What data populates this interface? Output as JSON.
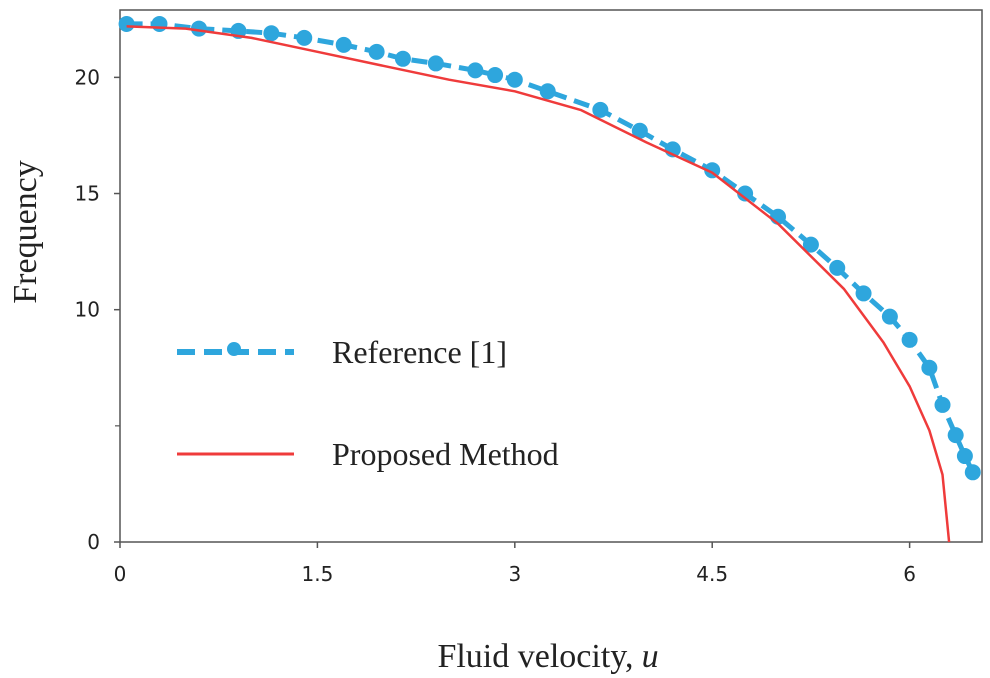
{
  "chart_data": {
    "type": "line",
    "title": "",
    "xlabel": "Fluid velocity,",
    "xlabel_var": "u",
    "ylabel": "Frequency",
    "xlim": [
      0,
      6.55
    ],
    "ylim": [
      0,
      22.9
    ],
    "x_ticks": [
      0,
      1.5,
      3,
      4.5,
      6
    ],
    "x_tick_labels": [
      "0",
      "1.5",
      "3",
      "4.5",
      "6"
    ],
    "y_ticks": [
      0,
      10,
      15,
      20
    ],
    "y_tick_labels": [
      "0",
      "10",
      "15",
      "20"
    ],
    "y_minor_ticks": [
      5
    ],
    "grid": false,
    "legend_position": "center-left",
    "series": [
      {
        "name": "Reference [1]",
        "style": "dashed-markers",
        "color": "#2ea6dd",
        "x": [
          0.05,
          0.3,
          0.6,
          0.9,
          1.15,
          1.4,
          1.7,
          1.95,
          2.15,
          2.4,
          2.7,
          2.85,
          3.0,
          3.25,
          3.65,
          3.95,
          4.2,
          4.5,
          4.75,
          5.0,
          5.25,
          5.45,
          5.65,
          5.85,
          6.0,
          6.15,
          6.25,
          6.35,
          6.42,
          6.48
        ],
        "y": [
          22.3,
          22.3,
          22.1,
          22.0,
          21.9,
          21.7,
          21.4,
          21.1,
          20.8,
          20.6,
          20.3,
          20.1,
          19.9,
          19.4,
          18.6,
          17.7,
          16.9,
          16.0,
          15.0,
          14.0,
          12.8,
          11.8,
          10.7,
          9.7,
          8.7,
          7.5,
          5.9,
          4.6,
          3.7,
          3.0
        ]
      },
      {
        "name": "Proposed Method",
        "style": "solid",
        "color": "#ef3b3b",
        "x": [
          0.05,
          0.5,
          1.0,
          1.5,
          2.0,
          2.5,
          3.0,
          3.5,
          4.0,
          4.5,
          5.0,
          5.5,
          5.8,
          6.0,
          6.15,
          6.25,
          6.3
        ],
        "y": [
          22.2,
          22.1,
          21.7,
          21.1,
          20.5,
          19.9,
          19.4,
          18.6,
          17.2,
          15.9,
          13.7,
          10.9,
          8.6,
          6.7,
          4.8,
          2.9,
          0.0
        ]
      }
    ]
  }
}
